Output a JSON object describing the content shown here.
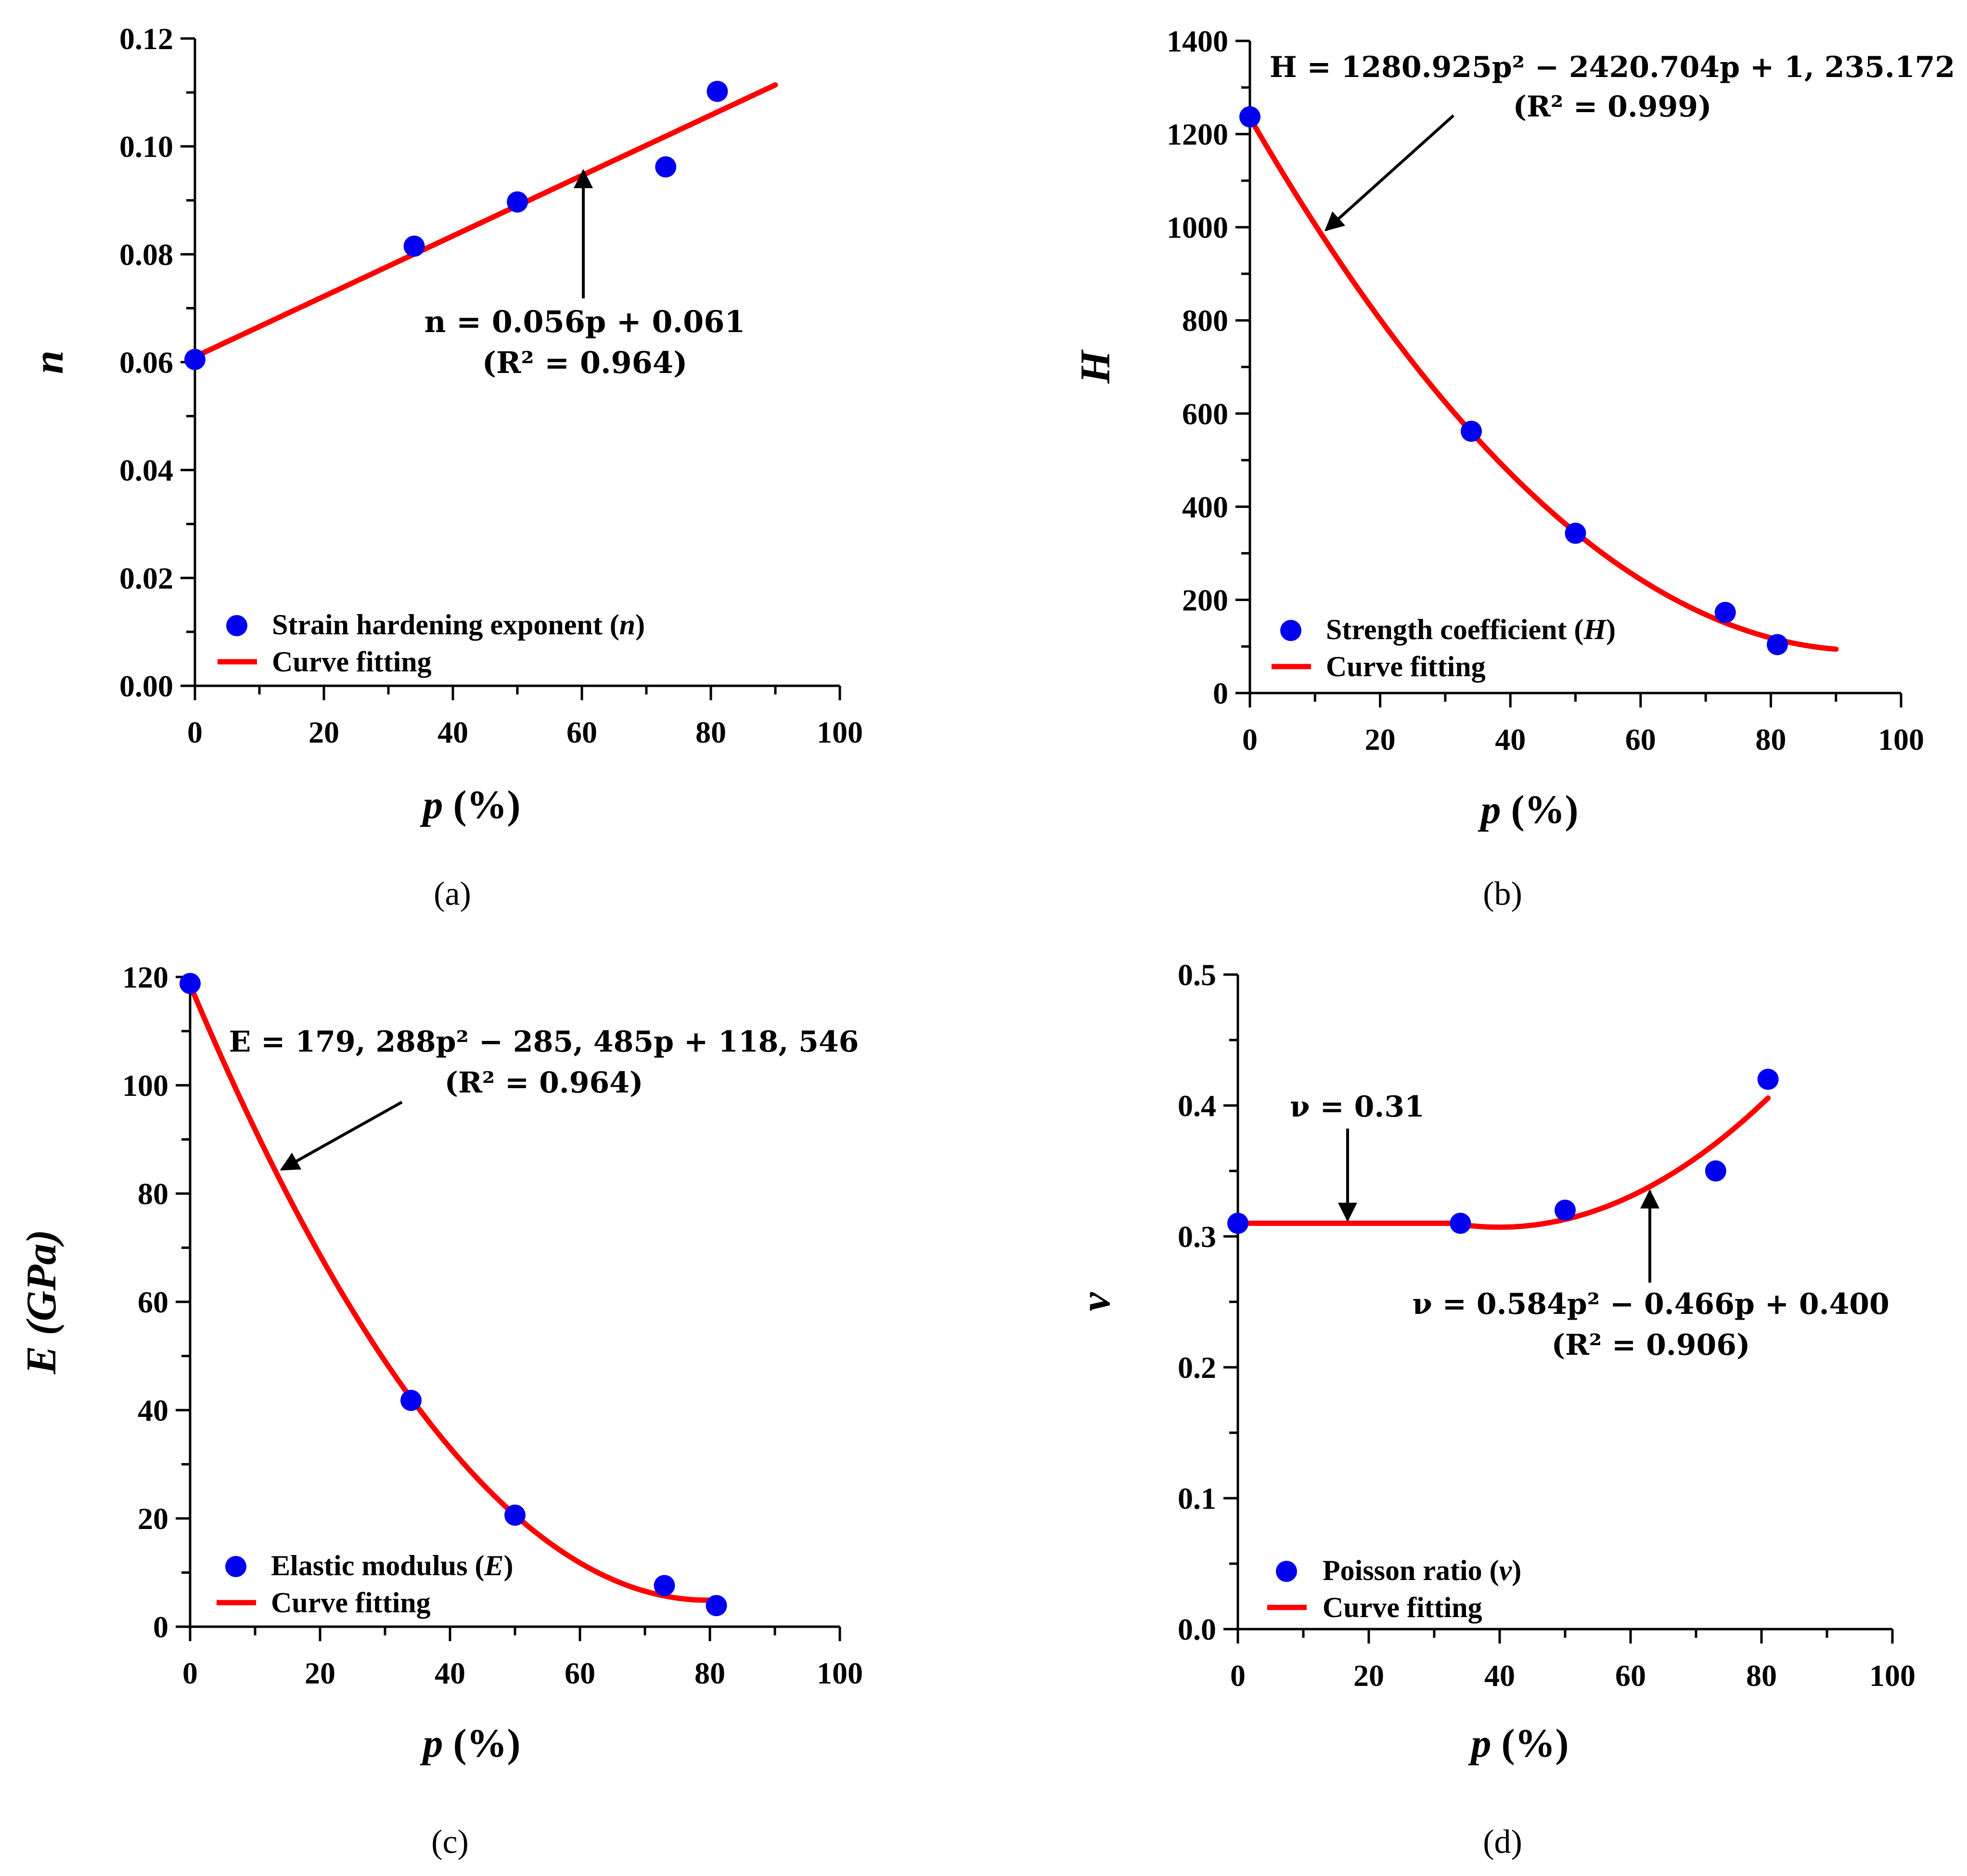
{
  "chart_data": [
    {
      "type": "scatter",
      "panel_label": "(a)",
      "xlabel_var": "p",
      "xlabel_unit": " (%)",
      "ylabel": "n",
      "ylabel_italic": true,
      "xlim": [
        0,
        100
      ],
      "ylim": [
        0,
        0.12
      ],
      "xticks": [
        "0",
        "20",
        "40",
        "60",
        "80",
        "100"
      ],
      "yticks": [
        "0.00",
        "0.02",
        "0.04",
        "0.06",
        "0.08",
        "0.10",
        "0.12"
      ],
      "points": [
        [
          0,
          0.0605
        ],
        [
          34,
          0.0815
        ],
        [
          50,
          0.0897
        ],
        [
          73,
          0.0962
        ],
        [
          81,
          0.1102
        ]
      ],
      "fit": {
        "kind": "linear",
        "coef": [
          0.061,
          0.056
        ],
        "xmax": 90
      },
      "legend": {
        "marker_label": "Strain hardening exponent (",
        "marker_var": "n",
        "marker_close": ")",
        "line_label": "Curve fitting"
      },
      "equation_line1": "n = 0.056p + 0.061",
      "equation_r2": "(R² = 0.964)",
      "colors": {
        "marker": "#0000ee",
        "line": "#ff0000"
      }
    },
    {
      "type": "scatter",
      "panel_label": "(b)",
      "xlabel_var": "p",
      "xlabel_unit": " (%)",
      "ylabel": "H",
      "ylabel_italic": true,
      "xlim": [
        0,
        100
      ],
      "ylim": [
        0,
        1400
      ],
      "xticks": [
        "0",
        "20",
        "40",
        "60",
        "80",
        "100"
      ],
      "yticks": [
        "0",
        "200",
        "400",
        "600",
        "800",
        "1000",
        "1200",
        "1400"
      ],
      "points": [
        [
          0,
          1237
        ],
        [
          34,
          562
        ],
        [
          50,
          343
        ],
        [
          73,
          173
        ],
        [
          81,
          104
        ]
      ],
      "fit": {
        "kind": "quadratic",
        "coef": [
          1235.172,
          -2420.704,
          1280.925
        ],
        "xmax": 90
      },
      "legend": {
        "marker_label": "Strength coefficient (",
        "marker_var": "H",
        "marker_close": ")",
        "line_label": "Curve fitting"
      },
      "equation_line1": "H = 1280.925p² − 2420.704p + 1, 235.172",
      "equation_r2": "(R² = 0.999)",
      "colors": {
        "marker": "#0000ee",
        "line": "#ff0000"
      }
    },
    {
      "type": "scatter",
      "panel_label": "(c)",
      "xlabel_var": "p",
      "xlabel_unit": " (%)",
      "ylabel": "E (GPa)",
      "ylabel_italic": true,
      "xlim": [
        0,
        100
      ],
      "ylim": [
        0,
        120
      ],
      "xticks": [
        "0",
        "20",
        "40",
        "60",
        "80",
        "100"
      ],
      "yticks": [
        "0",
        "20",
        "40",
        "60",
        "80",
        "100",
        "120"
      ],
      "points": [
        [
          0,
          118.8
        ],
        [
          34,
          41.8
        ],
        [
          50,
          20.6
        ],
        [
          73,
          7.6
        ],
        [
          81,
          3.9
        ]
      ],
      "fit": {
        "kind": "quadratic",
        "coef": [
          118.546,
          -285.485,
          179.288
        ],
        "xmax": 81
      },
      "legend": {
        "marker_label": "Elastic modulus (",
        "marker_var": "E",
        "marker_close": ")",
        "line_label": "Curve fitting"
      },
      "equation_line1": "E = 179, 288p² − 285, 485p + 118, 546",
      "equation_r2": "(R² = 0.964)",
      "colors": {
        "marker": "#0000ee",
        "line": "#ff0000"
      }
    },
    {
      "type": "scatter",
      "panel_label": "(d)",
      "xlabel_var": "p",
      "xlabel_unit": " (%)",
      "ylabel": "ν",
      "ylabel_italic": true,
      "xlim": [
        0,
        100
      ],
      "ylim": [
        0,
        0.5
      ],
      "xticks": [
        "0",
        "20",
        "40",
        "60",
        "80",
        "100"
      ],
      "yticks": [
        "0.0",
        "0.1",
        "0.2",
        "0.3",
        "0.4",
        "0.5"
      ],
      "points": [
        [
          0,
          0.31
        ],
        [
          34,
          0.31
        ],
        [
          50,
          0.32
        ],
        [
          73,
          0.35
        ],
        [
          81,
          0.42
        ]
      ],
      "fit": {
        "kind": "quadratic",
        "coef": [
          0.4,
          -0.466,
          0.584
        ],
        "xmin": 34,
        "xmax": 81,
        "const_value": 0.31
      },
      "legend": {
        "marker_label": "Poisson ratio (",
        "marker_var": "ν",
        "marker_close": ")",
        "line_label": "Curve fitting"
      },
      "equation_line1": "ν = 0.584p² − 0.466p + 0.400",
      "equation_r2": "(R² = 0.906)",
      "equation_const": "ν = 0.31",
      "colors": {
        "marker": "#0000ee",
        "line": "#ff0000"
      }
    }
  ]
}
